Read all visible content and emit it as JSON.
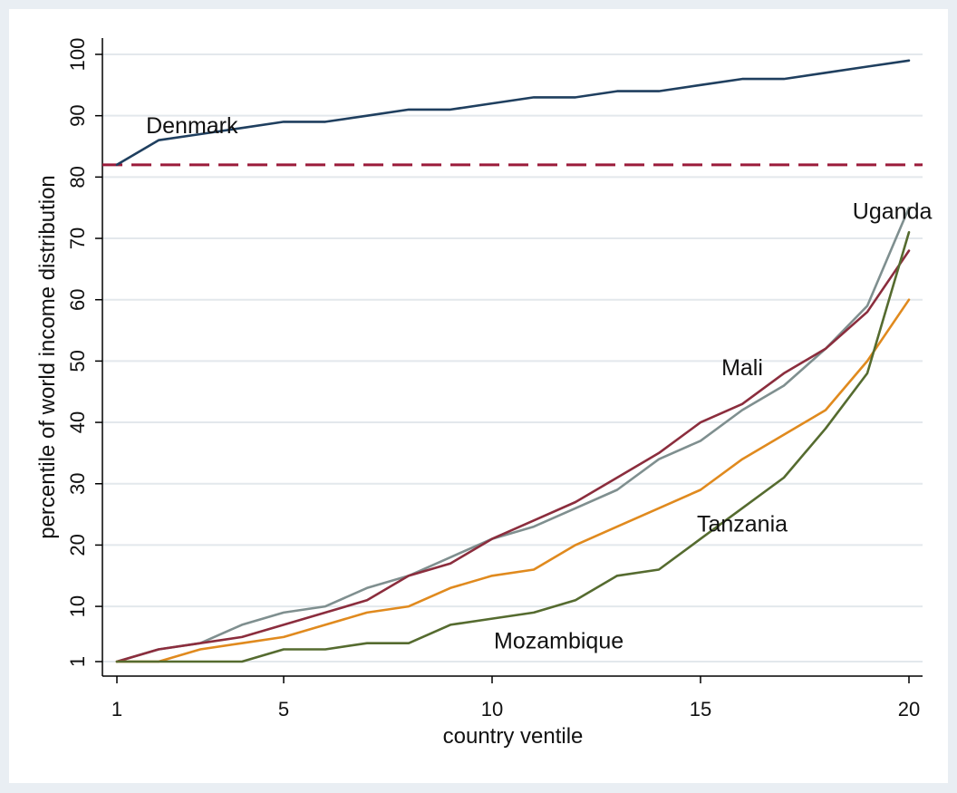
{
  "chart_data": {
    "type": "line",
    "title": "",
    "xlabel": "country ventile",
    "ylabel": "percentile of world income distribution",
    "xlim": [
      1,
      20
    ],
    "ylim": [
      1,
      100
    ],
    "xticks": [
      1,
      5,
      10,
      15,
      20
    ],
    "yticks": [
      1,
      10,
      20,
      30,
      40,
      50,
      60,
      70,
      80,
      90,
      100
    ],
    "grid": true,
    "x": [
      1,
      2,
      3,
      4,
      5,
      6,
      7,
      8,
      9,
      10,
      11,
      12,
      13,
      14,
      15,
      16,
      17,
      18,
      19,
      20
    ],
    "series": [
      {
        "name": "Denmark",
        "color": "#1f3f5f",
        "values": [
          82,
          86,
          87,
          88,
          89,
          89,
          90,
          91,
          91,
          92,
          93,
          93,
          94,
          94,
          95,
          96,
          96,
          97,
          98,
          99
        ]
      },
      {
        "name": "Uganda",
        "color": "#7f8f8f",
        "values": [
          1,
          3,
          4,
          7,
          9,
          10,
          13,
          15,
          18,
          21,
          23,
          26,
          29,
          34,
          37,
          42,
          46,
          52,
          59,
          75
        ]
      },
      {
        "name": "Mali",
        "color": "#8b2d3d",
        "values": [
          1,
          3,
          4,
          5,
          7,
          9,
          11,
          15,
          17,
          21,
          24,
          27,
          31,
          35,
          40,
          43,
          48,
          52,
          58,
          68
        ]
      },
      {
        "name": "Tanzania",
        "color": "#e08a1e",
        "values": [
          1,
          1,
          3,
          4,
          5,
          7,
          9,
          10,
          13,
          15,
          16,
          20,
          23,
          26,
          29,
          34,
          38,
          42,
          50,
          60
        ]
      },
      {
        "name": "Mozambique",
        "color": "#556b2f",
        "values": [
          1,
          1,
          1,
          1,
          3,
          3,
          4,
          4,
          7,
          8,
          9,
          11,
          15,
          16,
          21,
          26,
          31,
          39,
          48,
          71
        ]
      }
    ],
    "reference_line": {
      "y": 82,
      "style": "dashed",
      "color": "#9b1b3a"
    },
    "annotations": [
      {
        "text": "Denmark",
        "x": 2.8,
        "y": 88.5
      },
      {
        "text": "Uganda",
        "x": 19.6,
        "y": 74.5
      },
      {
        "text": "Mali",
        "x": 16.0,
        "y": 49
      },
      {
        "text": "Tanzania",
        "x": 16.0,
        "y": 23.5
      },
      {
        "text": "Mozambique",
        "x": 11.6,
        "y": 4.5
      }
    ]
  }
}
